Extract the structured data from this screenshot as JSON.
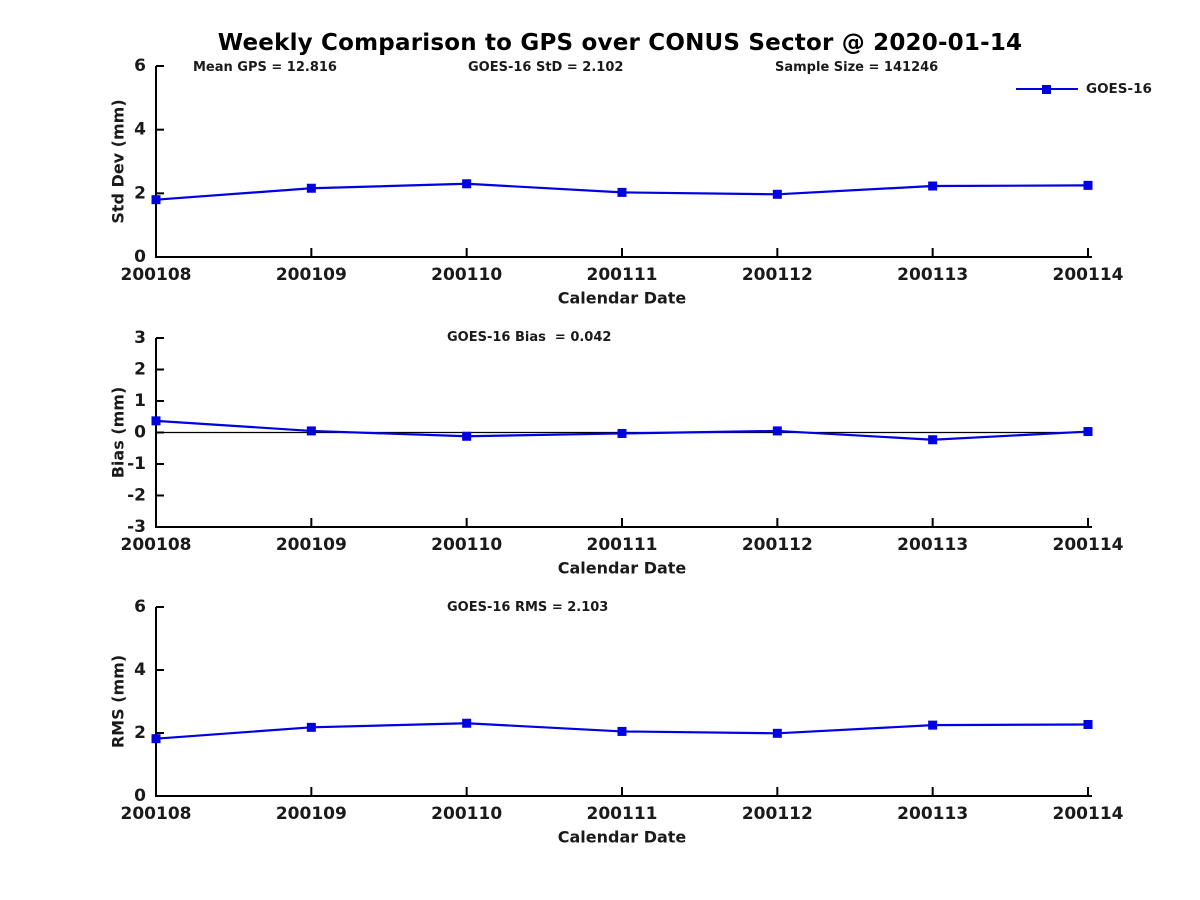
{
  "figure": {
    "title": "Weekly Comparison to GPS over CONUS Sector @ 2020-01-14",
    "background": "#ffffff"
  },
  "colors": {
    "series_blue": "#0000e0",
    "axis": "#000000",
    "text": "#1a1a1a"
  },
  "chart_data": [
    {
      "type": "line",
      "name": "std-dev-panel",
      "annotations": [
        "Mean GPS = 12.816",
        "GOES-16 StD = 2.102",
        "Sample Size = 141246"
      ],
      "legend": {
        "label": "GOES-16",
        "position": "top-right"
      },
      "categories": [
        "200108",
        "200109",
        "200110",
        "200111",
        "200112",
        "200113",
        "200114"
      ],
      "series": [
        {
          "name": "GOES-16",
          "values": [
            1.8,
            2.16,
            2.3,
            2.03,
            1.97,
            2.23,
            2.25
          ]
        }
      ],
      "xlabel": "Calendar Date",
      "ylabel": "Std Dev (mm)",
      "ylim": [
        0,
        6
      ],
      "yticks": [
        0,
        2,
        4,
        6
      ],
      "zero_line": false,
      "grid": false
    },
    {
      "type": "line",
      "name": "bias-panel",
      "annotation": "GOES-16 Bias  = 0.042",
      "categories": [
        "200108",
        "200109",
        "200110",
        "200111",
        "200112",
        "200113",
        "200114"
      ],
      "series": [
        {
          "name": "GOES-16",
          "values": [
            0.37,
            0.05,
            -0.12,
            -0.03,
            0.05,
            -0.23,
            0.03
          ]
        }
      ],
      "xlabel": "Calendar Date",
      "ylabel": "Bias (mm)",
      "ylim": [
        -3,
        3
      ],
      "yticks": [
        -3,
        -2,
        -1,
        0,
        1,
        2,
        3
      ],
      "zero_line": true,
      "grid": false
    },
    {
      "type": "line",
      "name": "rms-panel",
      "annotation": "GOES-16 RMS = 2.103",
      "categories": [
        "200108",
        "200109",
        "200110",
        "200111",
        "200112",
        "200113",
        "200114"
      ],
      "series": [
        {
          "name": "GOES-16",
          "values": [
            1.82,
            2.18,
            2.31,
            2.05,
            1.99,
            2.25,
            2.27
          ]
        }
      ],
      "xlabel": "Calendar Date",
      "ylabel": "RMS (mm)",
      "ylim": [
        0,
        6
      ],
      "yticks": [
        0,
        2,
        4,
        6
      ],
      "zero_line": false,
      "grid": false
    }
  ]
}
